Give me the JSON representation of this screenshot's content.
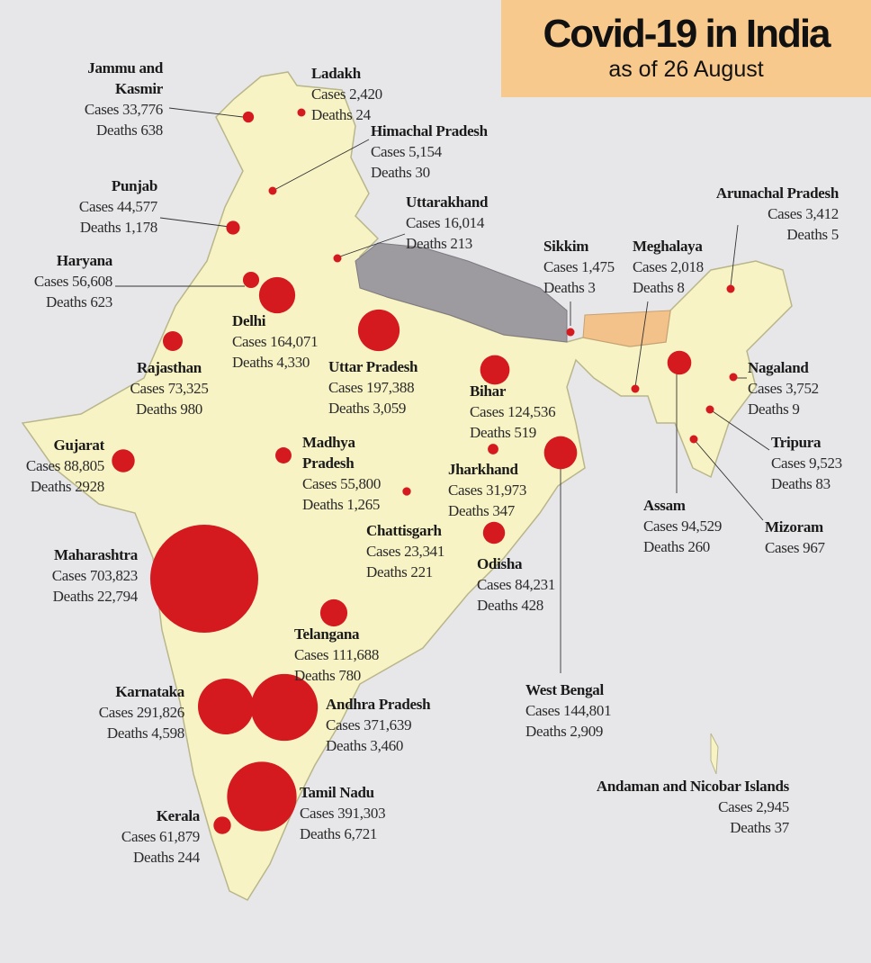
{
  "header": {
    "title": "Covid-19 in India",
    "subtitle": "as of 26 August"
  },
  "terms": {
    "cases": "Cases",
    "deaths": "Deaths"
  },
  "states": [
    {
      "name": "Jammu and Kasmir",
      "cases": 33776,
      "cases_label": "33,776",
      "deaths": "638"
    },
    {
      "name": "Ladakh",
      "cases": 2420,
      "cases_label": "2,420",
      "deaths": "24"
    },
    {
      "name": "Himachal Pradesh",
      "cases": 5154,
      "cases_label": "5,154",
      "deaths": "30"
    },
    {
      "name": "Punjab",
      "cases": 44577,
      "cases_label": "44,577",
      "deaths": "1,178"
    },
    {
      "name": "Haryana",
      "cases": 56608,
      "cases_label": "56,608",
      "deaths": "623"
    },
    {
      "name": "Delhi",
      "cases": 164071,
      "cases_label": "164,071",
      "deaths": "4,330"
    },
    {
      "name": "Rajasthan",
      "cases": 73325,
      "cases_label": "73,325",
      "deaths": "980"
    },
    {
      "name": "Uttar Pradesh",
      "cases": 197388,
      "cases_label": "197,388",
      "deaths": "3,059"
    },
    {
      "name": "Uttarakhand",
      "cases": 16014,
      "cases_label": "16,014",
      "deaths": "213"
    },
    {
      "name": "Bihar",
      "cases": 124536,
      "cases_label": "124,536",
      "deaths": "519"
    },
    {
      "name": "Sikkim",
      "cases": 1475,
      "cases_label": "1,475",
      "deaths": "3"
    },
    {
      "name": "Meghalaya",
      "cases": 2018,
      "cases_label": "2,018",
      "deaths": "8"
    },
    {
      "name": "Arunachal Pradesh",
      "cases": 3412,
      "cases_label": "3,412",
      "deaths": "5"
    },
    {
      "name": "Assam",
      "cases": 94529,
      "cases_label": "94,529",
      "deaths": "260"
    },
    {
      "name": "Nagaland",
      "cases": 3752,
      "cases_label": "3,752",
      "deaths": "9"
    },
    {
      "name": "Tripura",
      "cases": 9523,
      "cases_label": "9,523",
      "deaths": "83"
    },
    {
      "name": "Mizoram",
      "cases": 967,
      "cases_label": "967"
    },
    {
      "name": "Gujarat",
      "cases": 88805,
      "cases_label": "88,805",
      "deaths": "2928"
    },
    {
      "name": "Madhya Pradesh",
      "cases": 55800,
      "cases_label": "55,800",
      "deaths": "1,265"
    },
    {
      "name": "Jharkhand",
      "cases": 31973,
      "cases_label": "31,973",
      "deaths": "347"
    },
    {
      "name": "Chattisgarh",
      "cases": 23341,
      "cases_label": "23,341",
      "deaths": "221"
    },
    {
      "name": "West Bengal",
      "cases": 144801,
      "cases_label": "144,801",
      "deaths": "2,909"
    },
    {
      "name": "Odisha",
      "cases": 84231,
      "cases_label": "84,231",
      "deaths": "428"
    },
    {
      "name": "Maharashtra",
      "cases": 703823,
      "cases_label": "703,823",
      "deaths": "22,794"
    },
    {
      "name": "Telangana",
      "cases": 111688,
      "cases_label": "111,688",
      "deaths": "780"
    },
    {
      "name": "Karnataka",
      "cases": 291826,
      "cases_label": "291,826",
      "deaths": "4,598"
    },
    {
      "name": "Andhra Pradesh",
      "cases": 371639,
      "cases_label": "371,639",
      "deaths": "3,460"
    },
    {
      "name": "Tamil Nadu",
      "cases": 391303,
      "cases_label": "391,303",
      "deaths": "6,721"
    },
    {
      "name": "Kerala",
      "cases": 61879,
      "cases_label": "61,879",
      "deaths": "244"
    },
    {
      "name": "Andaman and Nicobar Islands",
      "cases_label": "2,945",
      "deaths": "37"
    }
  ]
}
